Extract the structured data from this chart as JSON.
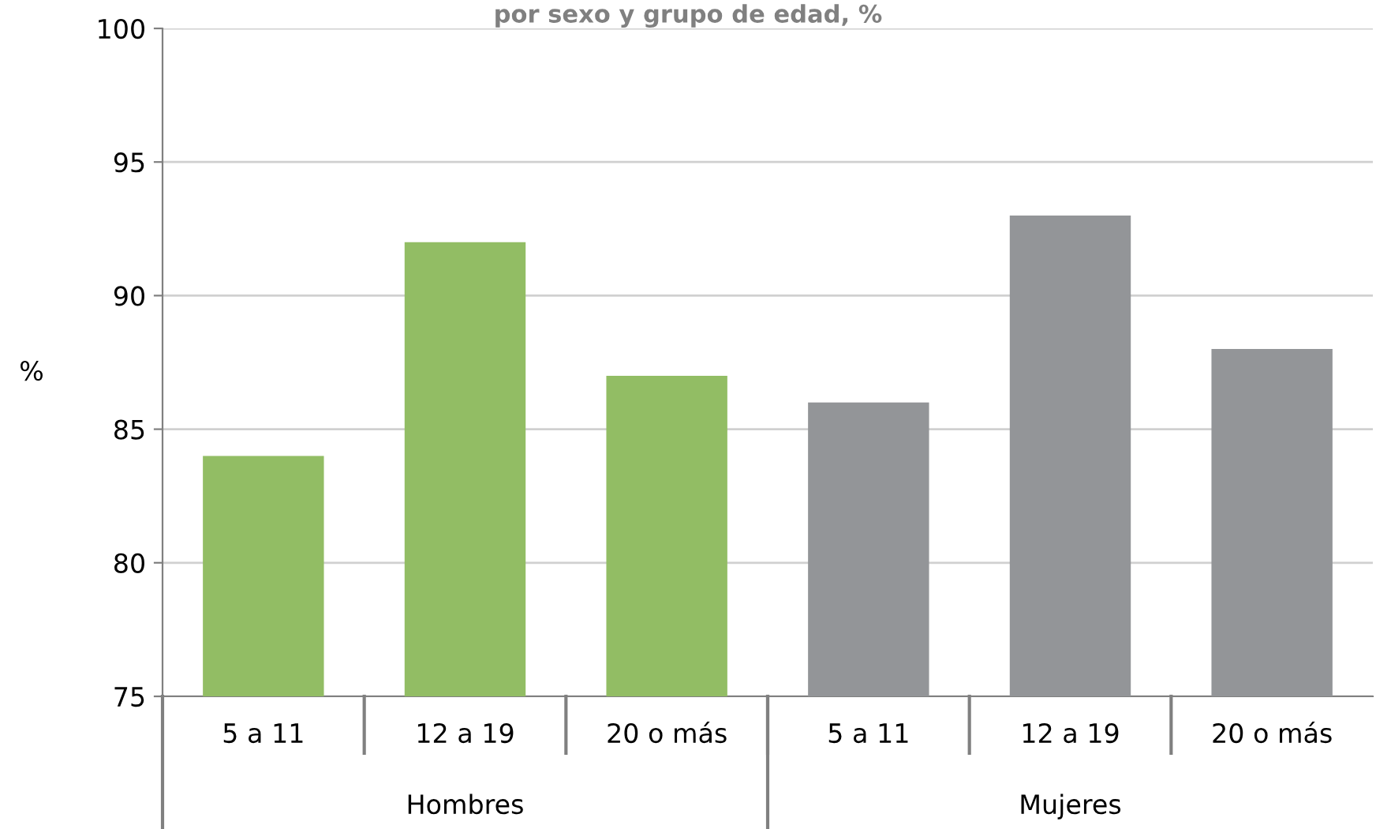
{
  "chart_data": {
    "type": "bar",
    "title": "por sexo y grupo de edad, %",
    "ylabel": "%",
    "categories": [
      "5 a 11",
      "12 a 19",
      "20 o más",
      "5 a 11",
      "12 a 19",
      "20 o más"
    ],
    "values": [
      84,
      92,
      87,
      86,
      93,
      88
    ],
    "colors": [
      "#92bd64",
      "#92bd64",
      "#92bd64",
      "#939598",
      "#939598",
      "#939598"
    ],
    "ylim": [
      75,
      100
    ],
    "yticks": [
      75,
      80,
      85,
      90,
      95,
      100
    ],
    "grid": "y",
    "annotations": [
      "Hombres",
      "Mujeres"
    ]
  }
}
